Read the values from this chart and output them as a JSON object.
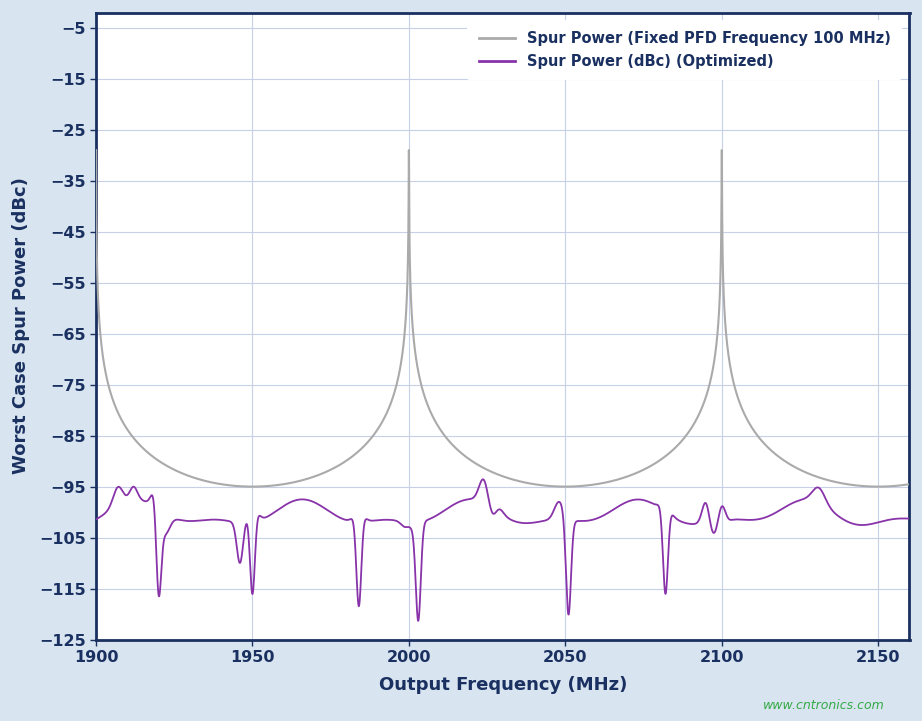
{
  "xlabel": "Output Frequency (MHz)",
  "ylabel": "Worst Case Spur Power (dBc)",
  "xlim": [
    1900,
    2160
  ],
  "ylim": [
    -125,
    -2
  ],
  "yticks": [
    -5,
    -15,
    -25,
    -35,
    -45,
    -55,
    -65,
    -75,
    -85,
    -95,
    -105,
    -115,
    -125
  ],
  "xticks": [
    1900,
    1950,
    2000,
    2050,
    2100,
    2150
  ],
  "outer_bg": "#d8e4f0",
  "plot_bg": "#ffffff",
  "grid_color": "#c8d0e8",
  "line1_color": "#aaaaaa",
  "line2_color": "#8833aa",
  "axis_color": "#1a3060",
  "spine_color": "#1a3060",
  "legend1": "Spur Power (Fixed PFD Frequency 100 MHz)",
  "legend2": "Spur Power (dBc) (Optimized)",
  "watermark": "www.cntronics.com",
  "watermark_color": "#33aa44"
}
